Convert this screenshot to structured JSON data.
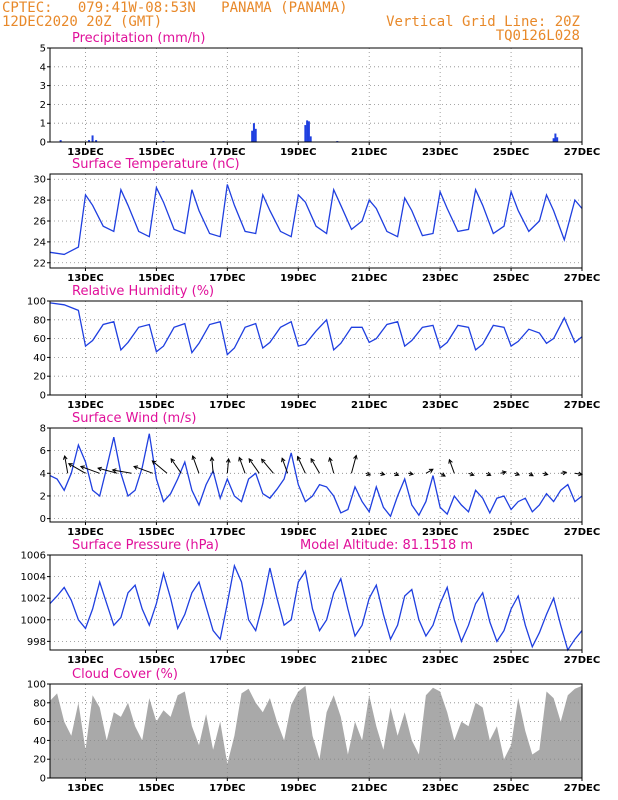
{
  "header": {
    "line1_left": "CPTEC:   079:41W-08:53N   PANAMA (PANAMA)",
    "line2_left": "12DEC2020 20Z (GMT)",
    "line1_right": "Vertical Grid Line: 20Z",
    "line2_right": "TQ0126L028"
  },
  "colors": {
    "header_text": "#e8892a",
    "panel_title": "#e0109a",
    "series_line": "#1f3fe0",
    "precip_bars": "#1f3fe0",
    "cloud_fill": "#a9a9a9",
    "wind_arrows": "#000000"
  },
  "x_axis": {
    "tick_labels": [
      "13DEC",
      "15DEC",
      "17DEC",
      "19DEC",
      "21DEC",
      "23DEC",
      "25DEC",
      "27DEC"
    ],
    "start_day": 12.0,
    "end_day": 27.0
  },
  "chart_data": [
    {
      "type": "bar",
      "title": "Precipitation (mm/h)",
      "ylim": [
        0,
        5
      ],
      "yticks": [
        "0",
        "1",
        "2",
        "3",
        "4",
        "5"
      ],
      "grid": true,
      "x_days": [
        12.3,
        13.1,
        13.2,
        13.3,
        15.2,
        17.7,
        17.75,
        17.8,
        19.2,
        19.25,
        19.3,
        19.35,
        20.1,
        26.2,
        26.25,
        26.3
      ],
      "values": [
        0.1,
        0.1,
        0.35,
        0.1,
        0.05,
        0.6,
        1.0,
        0.7,
        0.9,
        1.15,
        1.1,
        0.3,
        0.05,
        0.2,
        0.45,
        0.25
      ]
    },
    {
      "type": "line",
      "title": "Surface Temperature (nC)",
      "ylim": [
        21.5,
        30.5
      ],
      "yticks": [
        "22",
        "24",
        "26",
        "28",
        "30"
      ],
      "grid": true,
      "x_days": [
        12.0,
        12.4,
        12.8,
        13.0,
        13.2,
        13.5,
        13.8,
        14.0,
        14.2,
        14.5,
        14.8,
        15.0,
        15.2,
        15.5,
        15.8,
        16.0,
        16.2,
        16.5,
        16.8,
        17.0,
        17.2,
        17.5,
        17.8,
        18.0,
        18.2,
        18.5,
        18.8,
        19.0,
        19.2,
        19.5,
        19.8,
        20.0,
        20.2,
        20.5,
        20.8,
        21.0,
        21.2,
        21.5,
        21.8,
        22.0,
        22.2,
        22.5,
        22.8,
        23.0,
        23.2,
        23.5,
        23.8,
        24.0,
        24.2,
        24.5,
        24.8,
        25.0,
        25.2,
        25.5,
        25.8,
        26.0,
        26.2,
        26.5,
        26.8,
        27.0
      ],
      "values": [
        23.0,
        22.8,
        23.5,
        28.5,
        27.5,
        25.5,
        25.0,
        29.0,
        27.5,
        25.0,
        24.5,
        29.2,
        27.8,
        25.2,
        24.8,
        29.0,
        27.0,
        24.8,
        24.5,
        29.5,
        27.5,
        25.0,
        24.8,
        28.5,
        27.0,
        25.0,
        24.5,
        28.5,
        27.8,
        25.5,
        24.8,
        29.0,
        27.5,
        25.2,
        26.0,
        28.0,
        27.2,
        25.0,
        24.5,
        28.2,
        27.0,
        24.6,
        24.8,
        28.8,
        27.2,
        25.0,
        25.2,
        29.0,
        27.5,
        24.8,
        25.5,
        28.8,
        27.0,
        25.0,
        26.0,
        28.5,
        27.0,
        24.2,
        28.0,
        27.2
      ]
    },
    {
      "type": "line",
      "title": "Relative Humidity (%)",
      "ylim": [
        0,
        100
      ],
      "yticks": [
        "0",
        "20",
        "40",
        "60",
        "80",
        "100"
      ],
      "grid": true,
      "x_days": [
        12.0,
        12.4,
        12.8,
        13.0,
        13.2,
        13.5,
        13.8,
        14.0,
        14.2,
        14.5,
        14.8,
        15.0,
        15.2,
        15.5,
        15.8,
        16.0,
        16.2,
        16.5,
        16.8,
        17.0,
        17.2,
        17.5,
        17.8,
        18.0,
        18.2,
        18.5,
        18.8,
        19.0,
        19.2,
        19.5,
        19.8,
        20.0,
        20.2,
        20.5,
        20.8,
        21.0,
        21.2,
        21.5,
        21.8,
        22.0,
        22.2,
        22.5,
        22.8,
        23.0,
        23.2,
        23.5,
        23.8,
        24.0,
        24.2,
        24.5,
        24.8,
        25.0,
        25.2,
        25.5,
        25.8,
        26.0,
        26.2,
        26.5,
        26.8,
        27.0
      ],
      "values": [
        98,
        96,
        90,
        52,
        58,
        75,
        78,
        48,
        56,
        72,
        75,
        46,
        52,
        72,
        76,
        45,
        55,
        75,
        78,
        43,
        50,
        72,
        76,
        50,
        56,
        72,
        78,
        52,
        54,
        68,
        80,
        48,
        55,
        72,
        72,
        56,
        60,
        75,
        78,
        52,
        58,
        72,
        74,
        50,
        56,
        74,
        72,
        48,
        54,
        74,
        72,
        52,
        57,
        70,
        66,
        55,
        60,
        82,
        56,
        62
      ]
    },
    {
      "type": "line",
      "title": "Surface Wind (m/s)",
      "ylim": [
        -0.3,
        8
      ],
      "yticks": [
        "0",
        "2",
        "4",
        "6",
        "8"
      ],
      "grid": true,
      "x_days": [
        12.0,
        12.2,
        12.4,
        12.6,
        12.8,
        13.0,
        13.2,
        13.4,
        13.6,
        13.8,
        14.0,
        14.2,
        14.4,
        14.6,
        14.8,
        15.0,
        15.2,
        15.4,
        15.6,
        15.8,
        16.0,
        16.2,
        16.4,
        16.6,
        16.8,
        17.0,
        17.2,
        17.4,
        17.6,
        17.8,
        18.0,
        18.2,
        18.4,
        18.6,
        18.8,
        19.0,
        19.2,
        19.4,
        19.6,
        19.8,
        20.0,
        20.2,
        20.4,
        20.6,
        20.8,
        21.0,
        21.2,
        21.4,
        21.6,
        21.8,
        22.0,
        22.2,
        22.4,
        22.6,
        22.8,
        23.0,
        23.2,
        23.4,
        23.6,
        23.8,
        24.0,
        24.2,
        24.4,
        24.6,
        24.8,
        25.0,
        25.2,
        25.4,
        25.6,
        25.8,
        26.0,
        26.2,
        26.4,
        26.6,
        26.8,
        27.0
      ],
      "values": [
        3.8,
        3.5,
        2.5,
        4.0,
        6.5,
        5.0,
        2.5,
        2.0,
        4.5,
        7.2,
        4.0,
        2.0,
        2.5,
        4.5,
        7.5,
        3.5,
        1.5,
        2.2,
        3.5,
        5.0,
        2.5,
        1.2,
        3.0,
        4.2,
        1.8,
        3.5,
        2.0,
        1.5,
        3.5,
        4.0,
        2.2,
        1.8,
        2.6,
        3.5,
        5.8,
        3.0,
        1.5,
        2.0,
        3.0,
        2.8,
        2.0,
        0.5,
        0.8,
        2.8,
        1.5,
        0.6,
        2.8,
        1.0,
        0.2,
        2.0,
        3.5,
        1.2,
        0.3,
        1.5,
        3.8,
        1.0,
        0.4,
        2.0,
        1.2,
        0.6,
        2.5,
        1.8,
        0.5,
        1.8,
        2.0,
        0.8,
        1.5,
        1.8,
        0.6,
        1.2,
        2.2,
        1.5,
        2.5,
        3.0,
        1.5,
        2.0
      ],
      "arrow_x_days": [
        12.5,
        13.0,
        13.4,
        13.9,
        14.3,
        14.9,
        15.3,
        15.7,
        16.2,
        16.6,
        17.0,
        17.5,
        17.9,
        18.3,
        18.7,
        19.2,
        19.6,
        20.0,
        20.5,
        20.9,
        21.3,
        21.7,
        22.1,
        22.6,
        23.0,
        23.4,
        23.8,
        24.3,
        24.7,
        25.1,
        25.5,
        25.9,
        26.4,
        26.8
      ],
      "arrow_lengths": [
        2.2,
        2.4,
        2.5,
        2.5,
        2.4,
        2.5,
        2.4,
        2.2,
        2.3,
        2.0,
        1.8,
        2.1,
        2.2,
        2.3,
        2.0,
        2.3,
        2.1,
        2.0,
        2.3,
        0.6,
        0.6,
        0.6,
        0.6,
        1.0,
        0.7,
        1.8,
        0.7,
        0.6,
        0.7,
        0.6,
        0.6,
        0.6,
        0.7,
        0.9
      ],
      "arrow_angles_deg": [
        260,
        210,
        200,
        195,
        190,
        200,
        220,
        235,
        250,
        265,
        275,
        250,
        235,
        230,
        250,
        245,
        240,
        255,
        285,
        20,
        15,
        25,
        10,
        330,
        30,
        250,
        20,
        25,
        345,
        20,
        30,
        15,
        350,
        10
      ]
    },
    {
      "type": "line",
      "title": "Surface Pressure (hPa)",
      "annotation": "Model Altitude: 81.1518 m",
      "ylim": [
        997.2,
        1006
      ],
      "yticks": [
        "998",
        "1000",
        "1002",
        "1004",
        "1006"
      ],
      "grid": true,
      "x_days": [
        12.0,
        12.2,
        12.4,
        12.6,
        12.8,
        13.0,
        13.2,
        13.4,
        13.6,
        13.8,
        14.0,
        14.2,
        14.4,
        14.6,
        14.8,
        15.0,
        15.2,
        15.4,
        15.6,
        15.8,
        16.0,
        16.2,
        16.4,
        16.6,
        16.8,
        17.0,
        17.2,
        17.4,
        17.6,
        17.8,
        18.0,
        18.2,
        18.4,
        18.6,
        18.8,
        19.0,
        19.2,
        19.4,
        19.6,
        19.8,
        20.0,
        20.2,
        20.4,
        20.6,
        20.8,
        21.0,
        21.2,
        21.4,
        21.6,
        21.8,
        22.0,
        22.2,
        22.4,
        22.6,
        22.8,
        23.0,
        23.2,
        23.4,
        23.6,
        23.8,
        24.0,
        24.2,
        24.4,
        24.6,
        24.8,
        25.0,
        25.2,
        25.4,
        25.6,
        25.8,
        26.0,
        26.2,
        26.4,
        26.6,
        26.8,
        27.0
      ],
      "values": [
        1001.5,
        1002.2,
        1003.0,
        1001.8,
        1000.0,
        999.2,
        1001.0,
        1003.5,
        1001.5,
        999.5,
        1000.2,
        1002.5,
        1003.2,
        1001.0,
        999.5,
        1001.5,
        1004.3,
        1002.0,
        999.2,
        1000.5,
        1002.5,
        1003.5,
        1001.2,
        999.0,
        998.2,
        1001.5,
        1005.0,
        1003.5,
        1000.0,
        999.0,
        1001.5,
        1004.8,
        1002.0,
        999.5,
        1000.0,
        1003.5,
        1004.5,
        1001.0,
        999.0,
        1000.0,
        1002.5,
        1003.8,
        1001.0,
        998.5,
        999.5,
        1002.0,
        1003.2,
        1000.5,
        998.2,
        999.5,
        1002.2,
        1002.8,
        1000.0,
        998.5,
        999.5,
        1001.5,
        1003.0,
        1000.0,
        998.0,
        999.5,
        1001.5,
        1002.5,
        999.8,
        998.0,
        999.0,
        1001.0,
        1002.2,
        999.5,
        997.5,
        998.8,
        1000.5,
        1002.0,
        999.5,
        997.2,
        998.2,
        999.0
      ]
    },
    {
      "type": "area",
      "title": "Cloud Cover (%)",
      "ylim": [
        0,
        100
      ],
      "yticks": [
        "0",
        "20",
        "40",
        "60",
        "80",
        "100"
      ],
      "grid": true,
      "x_days": [
        12.0,
        12.2,
        12.4,
        12.6,
        12.8,
        13.0,
        13.2,
        13.4,
        13.6,
        13.8,
        14.0,
        14.2,
        14.4,
        14.6,
        14.8,
        15.0,
        15.2,
        15.4,
        15.6,
        15.8,
        16.0,
        16.2,
        16.4,
        16.6,
        16.8,
        17.0,
        17.2,
        17.4,
        17.6,
        17.8,
        18.0,
        18.2,
        18.4,
        18.6,
        18.8,
        19.0,
        19.2,
        19.4,
        19.6,
        19.8,
        20.0,
        20.2,
        20.4,
        20.6,
        20.8,
        21.0,
        21.2,
        21.4,
        21.6,
        21.8,
        22.0,
        22.2,
        22.4,
        22.6,
        22.8,
        23.0,
        23.2,
        23.4,
        23.6,
        23.8,
        24.0,
        24.2,
        24.4,
        24.6,
        24.8,
        25.0,
        25.2,
        25.4,
        25.6,
        25.8,
        26.0,
        26.2,
        26.4,
        26.6,
        26.8,
        27.0
      ],
      "values": [
        82,
        90,
        60,
        45,
        80,
        30,
        88,
        75,
        40,
        70,
        65,
        80,
        55,
        40,
        85,
        60,
        72,
        65,
        88,
        92,
        55,
        35,
        68,
        30,
        60,
        15,
        45,
        90,
        95,
        80,
        70,
        85,
        60,
        40,
        78,
        92,
        98,
        45,
        20,
        70,
        88,
        65,
        25,
        60,
        40,
        88,
        55,
        30,
        75,
        45,
        70,
        40,
        25,
        88,
        96,
        92,
        70,
        40,
        60,
        55,
        80,
        75,
        40,
        55,
        20,
        35,
        85,
        50,
        25,
        30,
        92,
        85,
        60,
        88,
        95,
        98
      ]
    }
  ]
}
